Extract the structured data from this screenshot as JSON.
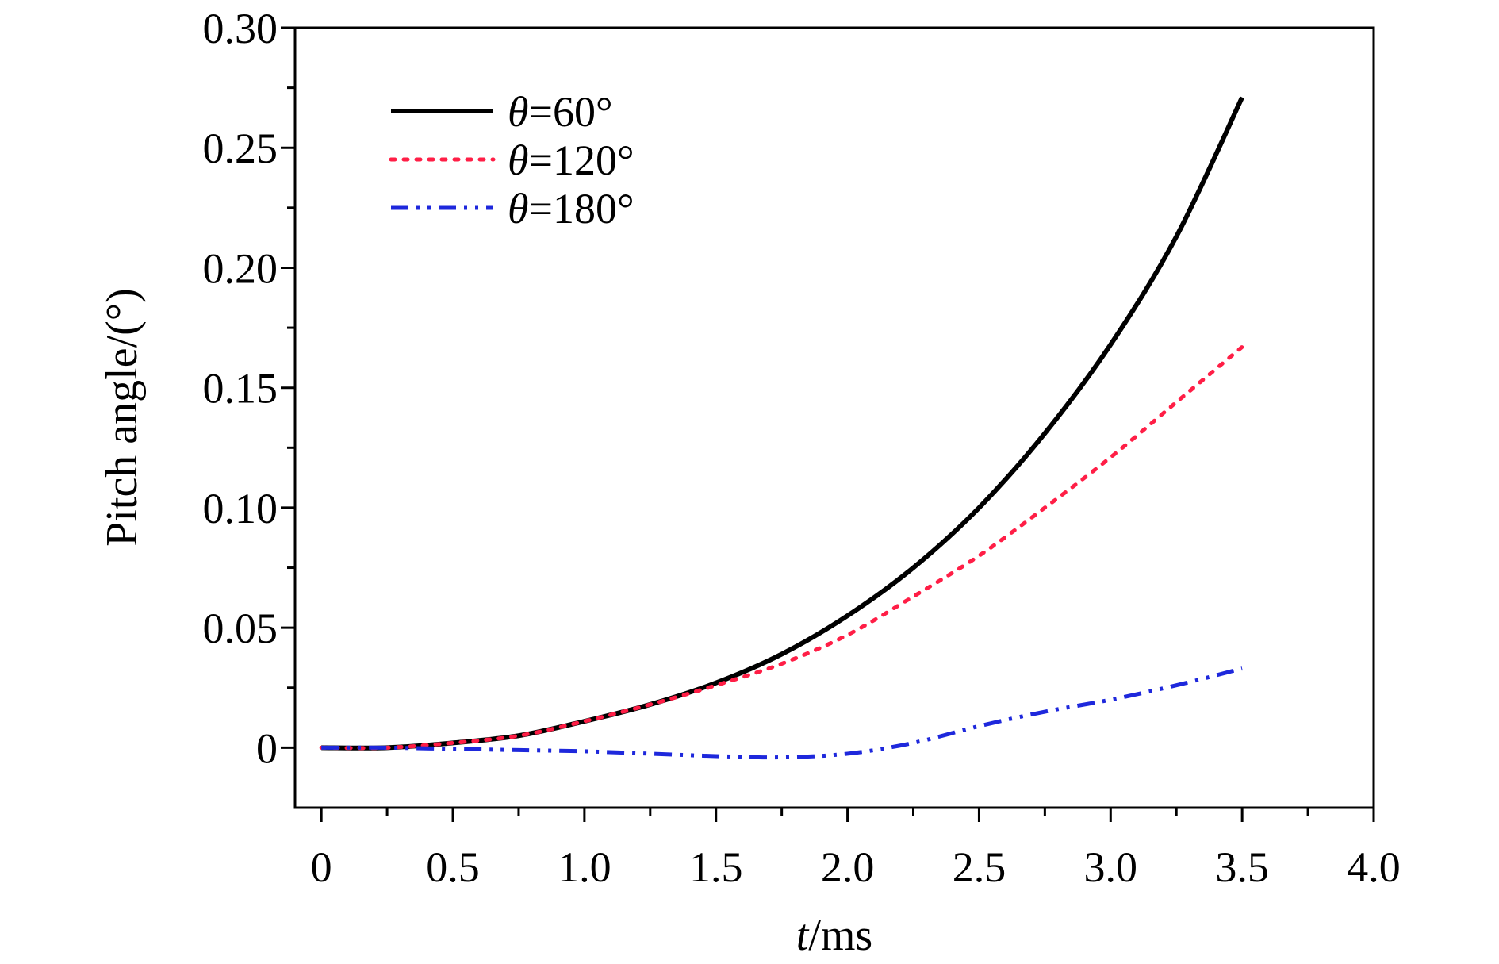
{
  "chart_data": {
    "type": "line",
    "title": "",
    "xlabel": {
      "italic": "t",
      "rest": "/ms"
    },
    "ylabel": "Pitch angle/(°)",
    "xlim": [
      -0.1,
      4.0
    ],
    "ylim": [
      -0.025,
      0.3
    ],
    "x_ticks": [
      0,
      0.5,
      1.0,
      1.5,
      2.0,
      2.5,
      3.0,
      3.5,
      4.0
    ],
    "x_tick_labels": [
      "0",
      "0.5",
      "1.0",
      "1.5",
      "2.0",
      "2.5",
      "3.0",
      "3.5",
      "4.0"
    ],
    "y_ticks": [
      0,
      0.05,
      0.1,
      0.15,
      0.2,
      0.25,
      0.3
    ],
    "y_tick_labels": [
      "0",
      "0.05",
      "0.10",
      "0.15",
      "0.20",
      "0.25",
      "0.30"
    ],
    "grid": false,
    "legend_position": "top-left",
    "series": [
      {
        "name": "θ=60°",
        "name_italic": "θ",
        "name_rest": "=60°",
        "color": "#000000",
        "style": "solid",
        "x": [
          0,
          0.25,
          0.5,
          0.75,
          1.0,
          1.25,
          1.5,
          1.75,
          2.0,
          2.25,
          2.5,
          2.75,
          3.0,
          3.25,
          3.5
        ],
        "y": [
          0,
          0,
          0.002,
          0.005,
          0.011,
          0.018,
          0.027,
          0.039,
          0.055,
          0.075,
          0.1,
          0.131,
          0.168,
          0.213,
          0.271
        ]
      },
      {
        "name": "θ=120°",
        "name_italic": "θ",
        "name_rest": "=120°",
        "color": "#ff1e46",
        "style": "dotted",
        "x": [
          0,
          0.25,
          0.5,
          0.75,
          1.0,
          1.25,
          1.5,
          1.75,
          2.0,
          2.25,
          2.5,
          2.75,
          3.0,
          3.25,
          3.5
        ],
        "y": [
          0,
          0,
          0.002,
          0.005,
          0.011,
          0.018,
          0.026,
          0.035,
          0.047,
          0.063,
          0.08,
          0.1,
          0.121,
          0.144,
          0.167
        ]
      },
      {
        "name": "θ=180°",
        "name_italic": "θ",
        "name_rest": "=180°",
        "color": "#1e28dc",
        "style": "dashdotdot",
        "x": [
          0,
          0.25,
          0.5,
          0.75,
          1.0,
          1.25,
          1.5,
          1.75,
          2.0,
          2.25,
          2.5,
          2.75,
          3.0,
          3.25,
          3.5
        ],
        "y": [
          0,
          0,
          -0.0005,
          -0.001,
          -0.0015,
          -0.0025,
          -0.0035,
          -0.004,
          -0.0025,
          0.002,
          0.009,
          0.015,
          0.02,
          0.026,
          0.033
        ]
      }
    ]
  }
}
